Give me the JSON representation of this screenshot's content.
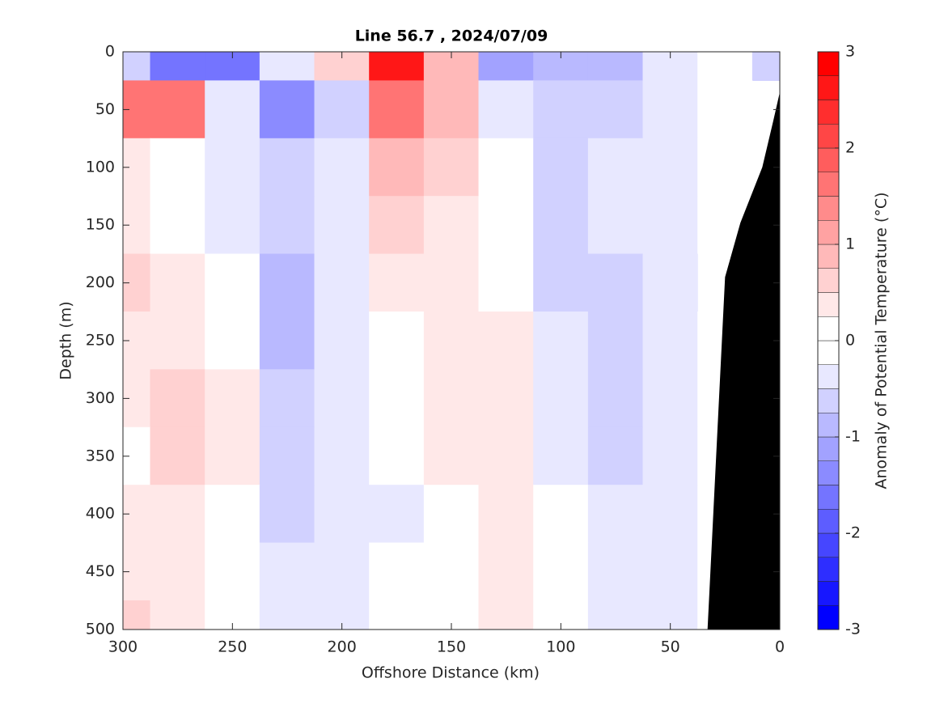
{
  "chart_data": {
    "type": "contourf",
    "title": "Line 56.7 , 2024/07/09",
    "x_label": "Offshore Distance (km)",
    "y_label": "Depth (m)",
    "x": [
      300,
      275,
      250,
      225,
      200,
      175,
      150,
      125,
      100,
      75,
      50,
      25,
      0
    ],
    "depth": [
      0,
      50,
      100,
      150,
      200,
      250,
      300,
      350,
      400,
      450,
      500
    ],
    "values": [
      [
        -0.5,
        -1.5,
        -1.5,
        -0.3,
        0.5,
        2.5,
        0.8,
        -1.2,
        -0.8,
        -0.8,
        -0.3,
        0,
        -0.5
      ],
      [
        1.5,
        1.5,
        -0.3,
        -1.3,
        -0.5,
        1.5,
        0.8,
        -0.3,
        -0.5,
        -0.5,
        -0.3,
        0,
        null
      ],
      [
        0.3,
        0,
        -0.3,
        -0.5,
        -0.3,
        0.8,
        0.5,
        0,
        -0.5,
        -0.3,
        -0.3,
        0,
        null
      ],
      [
        0.3,
        0,
        -0.3,
        -0.5,
        -0.3,
        0.5,
        0.3,
        0,
        -0.5,
        -0.3,
        -0.3,
        0,
        null
      ],
      [
        0.5,
        0.3,
        0,
        -0.8,
        -0.3,
        0.3,
        0.3,
        0,
        -0.5,
        -0.5,
        -0.3,
        null,
        null
      ],
      [
        0.3,
        0.3,
        0,
        -0.8,
        -0.3,
        0,
        0.3,
        0.3,
        -0.3,
        -0.5,
        -0.3,
        0,
        null
      ],
      [
        0.3,
        0.5,
        0.3,
        -0.5,
        -0.3,
        0,
        0.3,
        0.3,
        -0.3,
        -0.5,
        -0.3,
        0,
        null
      ],
      [
        0,
        0.5,
        0.3,
        -0.5,
        -0.3,
        0,
        0.3,
        0.3,
        -0.3,
        -0.5,
        -0.3,
        0,
        null
      ],
      [
        0.3,
        0.3,
        0,
        -0.5,
        -0.3,
        -0.3,
        0,
        0.3,
        0,
        -0.3,
        -0.3,
        0,
        null
      ],
      [
        0.3,
        0.3,
        0,
        -0.3,
        -0.3,
        0,
        0,
        0.3,
        0,
        -0.3,
        -0.3,
        0,
        null
      ],
      [
        0.5,
        0.3,
        0,
        -0.3,
        -0.3,
        0,
        0,
        0.3,
        0,
        -0.3,
        -0.3,
        0,
        null
      ]
    ],
    "xlim": [
      300,
      0
    ],
    "ylim": [
      0,
      500
    ],
    "xticks": [
      300,
      250,
      200,
      150,
      100,
      50,
      0
    ],
    "yticks": [
      0,
      50,
      100,
      150,
      200,
      250,
      300,
      350,
      400,
      450,
      500
    ],
    "bottom": {
      "x": [
        33,
        25,
        18,
        8,
        3,
        0
      ],
      "depth": [
        500,
        195,
        148,
        100,
        60,
        35
      ],
      "color": "#000000"
    },
    "colorbar": {
      "label": "Anomaly of Potential Temperature (°C)",
      "clim": [
        -3,
        3
      ],
      "ticks": [
        -3,
        -2,
        -1,
        0,
        1,
        2,
        3
      ],
      "level_step": 0.25,
      "low_color": "#0000ff",
      "mid_color": "#ffffff",
      "high_color": "#ff0000"
    }
  }
}
